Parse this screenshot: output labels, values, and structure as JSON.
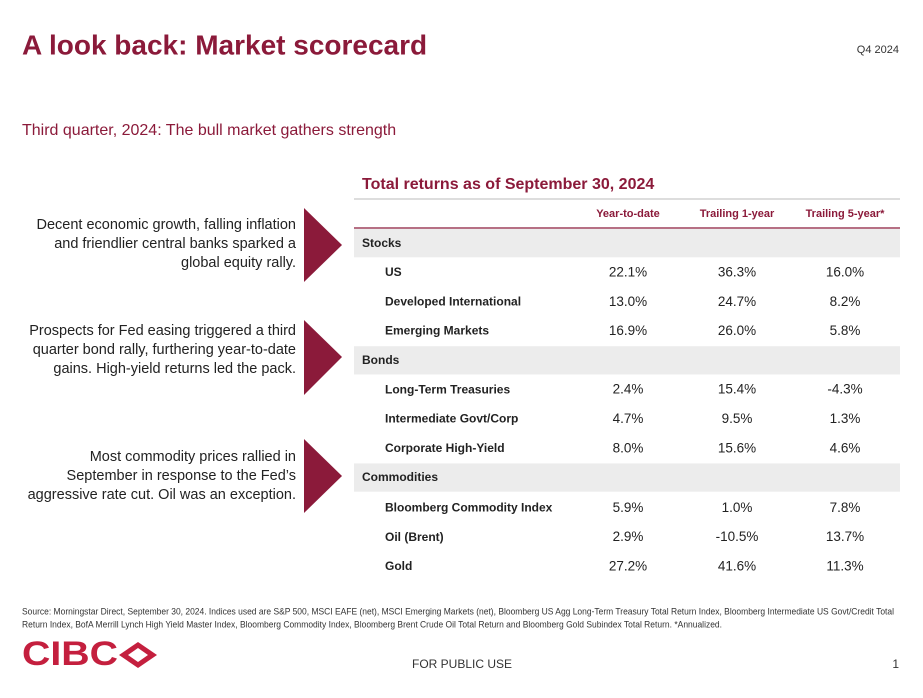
{
  "header": {
    "title": "A look back: Market scorecard",
    "date": "Q4 2024"
  },
  "subtitle": "Third quarter, 2024: The bull market gathers strength",
  "commentary": [
    [
      "Decent economic growth, falling inflation",
      "and friendlier central banks sparked a",
      "global equity rally."
    ],
    [
      "Prospects for Fed easing triggered a third",
      "quarter bond rally, furthering year-to-date",
      "gains. High-yield returns led the pack."
    ],
    [
      "Most commodity prices rallied in",
      "September in response to the Fed’s",
      "aggressive rate cut. Oil was an exception."
    ]
  ],
  "table": {
    "title": "Total returns as of September 30, 2024",
    "columns": [
      "Year-to-date",
      "Trailing 1-year",
      "Trailing 5-year*"
    ],
    "sections": [
      {
        "name": "Stocks",
        "rows": [
          {
            "label": "US",
            "values": [
              "22.1%",
              "36.3%",
              "16.0%"
            ]
          },
          {
            "label": "Developed International",
            "values": [
              "13.0%",
              "24.7%",
              "8.2%"
            ]
          },
          {
            "label": "Emerging Markets",
            "values": [
              "16.9%",
              "26.0%",
              "5.8%"
            ]
          }
        ]
      },
      {
        "name": "Bonds",
        "rows": [
          {
            "label": "Long-Term Treasuries",
            "values": [
              "2.4%",
              "15.4%",
              "-4.3%"
            ]
          },
          {
            "label": "Intermediate Govt/Corp",
            "values": [
              "4.7%",
              "9.5%",
              "1.3%"
            ]
          },
          {
            "label": "Corporate High-Yield",
            "values": [
              "8.0%",
              "15.6%",
              "4.6%"
            ]
          }
        ]
      },
      {
        "name": "Commodities",
        "rows": [
          {
            "label": "Bloomberg Commodity Index",
            "values": [
              "5.9%",
              "1.0%",
              "7.8%"
            ]
          },
          {
            "label": "Oil (Brent)",
            "values": [
              "2.9%",
              "-10.5%",
              "13.7%"
            ]
          },
          {
            "label": "Gold",
            "values": [
              "27.2%",
              "41.6%",
              "11.3%"
            ]
          }
        ]
      }
    ]
  },
  "source": [
    "Source: Morningstar Direct, September 30, 2024. Indices used are S&P 500, MSCI EAFE (net), MSCI Emerging Markets (net), Bloomberg US Agg Long-Term Treasury Total Return Index, Bloomberg Intermediate US Govt/Credit Total",
    "Return Index, BofA Merrill Lynch High Yield Master Index, Bloomberg Commodity Index, Bloomberg Brent Crude Oil Total Return and Bloomberg Gold Subindex Total Return. *Annualized."
  ],
  "logo": "CIBC",
  "footer": {
    "classification": "FOR PUBLIC USE",
    "page": "1"
  }
}
